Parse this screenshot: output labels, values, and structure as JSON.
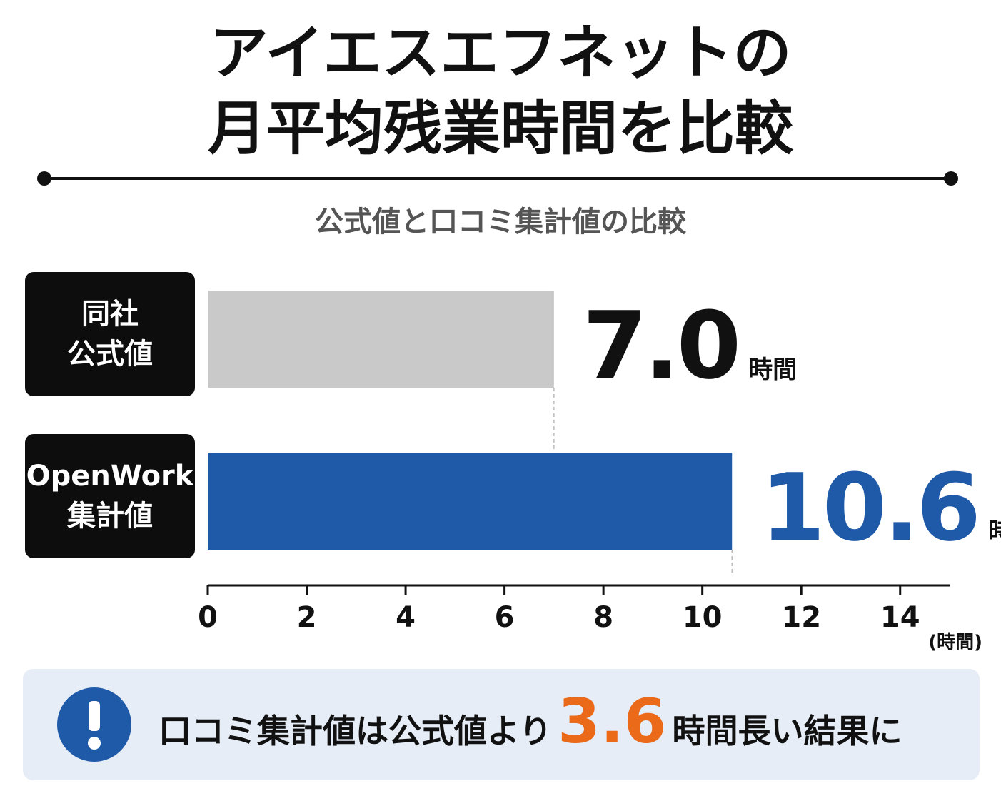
{
  "chart_data": {
    "type": "bar",
    "orientation": "horizontal",
    "title": "アイエスエフネットの\n月平均残業時間を比較",
    "subtitle": "公式値と口コミ集計値の比較",
    "categories": [
      "同社\n公式値",
      "OpenWork\n集計値"
    ],
    "values": [
      7.0,
      10.6
    ],
    "value_labels": [
      "7.0",
      "10.6"
    ],
    "value_unit": "時間",
    "colors": [
      "#c9c9c9",
      "#1f5aa8"
    ],
    "label_colors": [
      "#111111",
      "#1f5aa8"
    ],
    "xlim": [
      0,
      15
    ],
    "xticks": [
      0,
      2,
      4,
      6,
      8,
      10,
      12,
      14
    ],
    "xlabel": "(時間)",
    "annotation": {
      "prefix": "口コミ集計値は公式値より",
      "value": 3.6,
      "suffix": "時間長い結果に",
      "color": "#ea6a1a"
    }
  }
}
